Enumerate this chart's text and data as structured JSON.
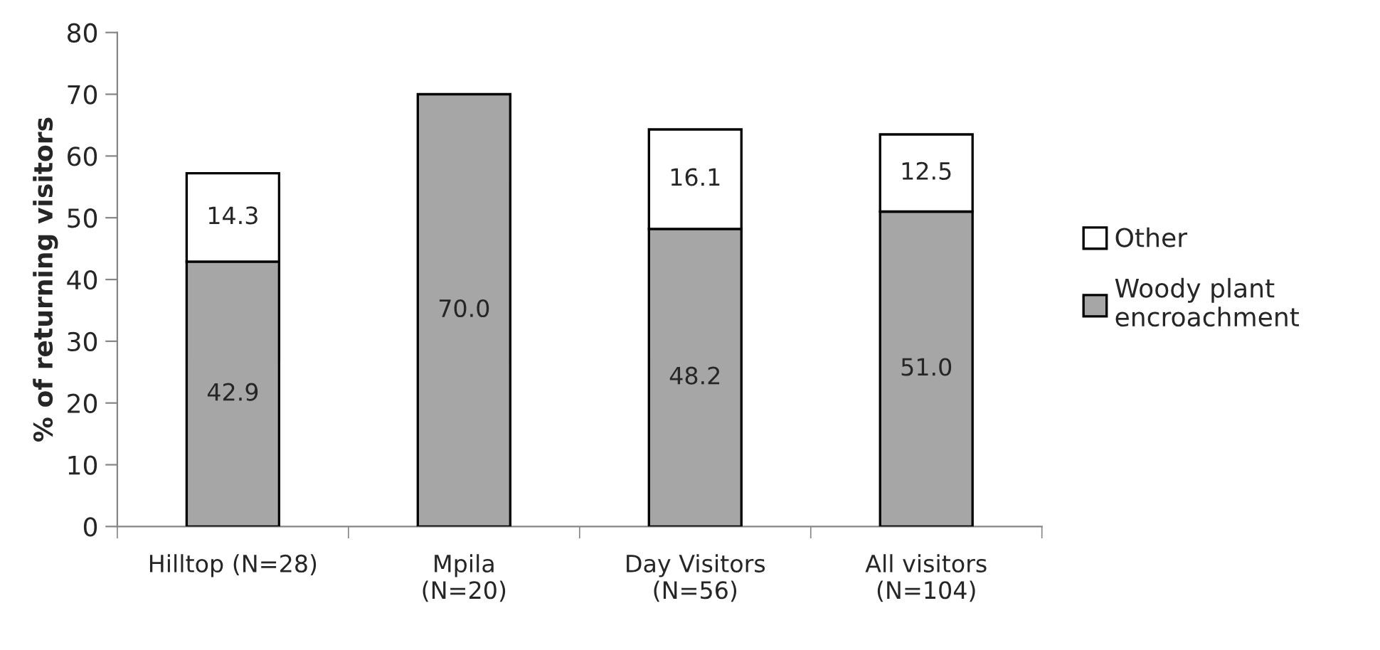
{
  "chart_data": {
    "type": "bar",
    "stacked": true,
    "ylabel": "% of returning visitors",
    "categories": [
      "Hilltop (N=28)",
      "Mpila\n(N=20)",
      "Day Visitors\n(N=56)",
      "All visitors\n(N=104)"
    ],
    "series": [
      {
        "name": "Woody plant\nencroachment",
        "color": "#a6a6a6",
        "values": [
          42.9,
          70.0,
          48.2,
          51.0
        ],
        "value_labels": [
          "42.9",
          "70.0",
          "48.2",
          "51.0"
        ]
      },
      {
        "name": "Other",
        "color": "#ffffff",
        "values": [
          14.3,
          null,
          16.1,
          12.5
        ],
        "value_labels": [
          "14.3",
          null,
          "16.1",
          "12.5"
        ]
      }
    ],
    "ylim": [
      0,
      80
    ],
    "yticks": [
      0,
      10,
      20,
      30,
      40,
      50,
      60,
      70,
      80
    ],
    "legend": "right",
    "grid": false
  }
}
